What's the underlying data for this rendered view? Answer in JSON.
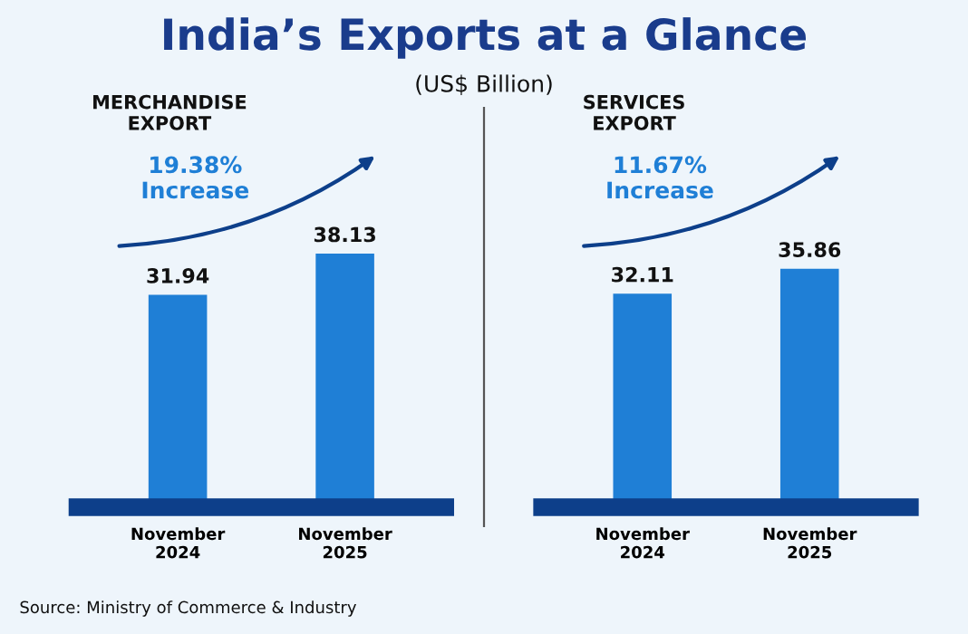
{
  "chart_data": [
    {
      "type": "bar",
      "title": "India’s Exports at a Glance",
      "subtitle": "(US$ Billion)",
      "xlabel": "MERCHANDISE\nEXPORT",
      "categories": [
        "November\n2024",
        "November\n2025"
      ],
      "values": [
        31.94,
        38.13
      ],
      "color": "#1f7fd6",
      "data_labels": true,
      "annotations": [
        "19.38%\nIncrease",
        "Source: Ministry of Commerce & Industry"
      ]
    },
    {
      "type": "bar",
      "xlabel": "SERVICES\nEXPORT",
      "categories": [
        "November\n2024",
        "November\n2025"
      ],
      "values": [
        32.11,
        35.86
      ],
      "color": "#1f7fd6",
      "data_labels": true,
      "annotations": [
        "11.67%\nIncrease"
      ]
    }
  ]
}
